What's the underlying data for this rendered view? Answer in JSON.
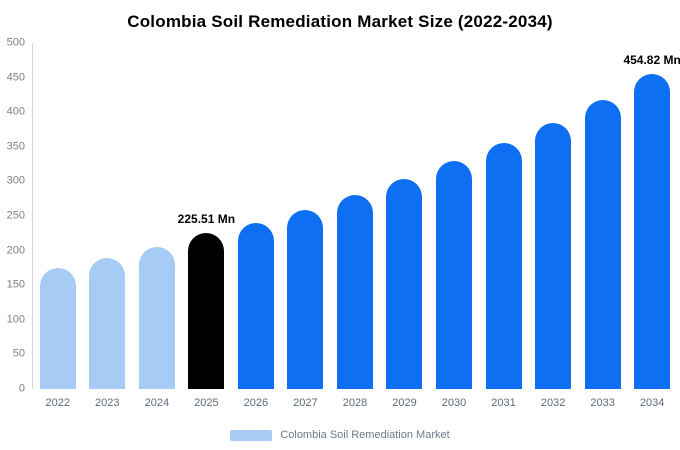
{
  "title": "Colombia Soil Remediation Market Size (2022-2034)",
  "legend": {
    "label": "Colombia Soil Remediation Market",
    "swatch_color": "#a6cbf4"
  },
  "colors": {
    "light": "#a6cbf4",
    "primary": "#0e6ff2",
    "highlight": "#000000"
  },
  "chart_data": {
    "type": "bar",
    "title": "Colombia Soil Remediation Market Size (2022-2034)",
    "xlabel": "",
    "ylabel": "",
    "categories": [
      "2022",
      "2023",
      "2024",
      "2025",
      "2026",
      "2027",
      "2028",
      "2029",
      "2030",
      "2031",
      "2032",
      "2033",
      "2034"
    ],
    "values": [
      175,
      190,
      205,
      225.51,
      240,
      258,
      281,
      303,
      330,
      356,
      385,
      417,
      454.82
    ],
    "bar_colors": [
      "light",
      "light",
      "light",
      "highlight",
      "primary",
      "primary",
      "primary",
      "primary",
      "primary",
      "primary",
      "primary",
      "primary",
      "primary"
    ],
    "ylim": [
      0,
      500
    ],
    "yticks": [
      0,
      50,
      100,
      150,
      200,
      250,
      300,
      350,
      400,
      450,
      500
    ],
    "grid": false,
    "legend_position": "bottom",
    "annotations": [
      {
        "category": "2025",
        "text": "225.51 Mn"
      },
      {
        "category": "2034",
        "text": "454.82 Mn"
      }
    ]
  }
}
